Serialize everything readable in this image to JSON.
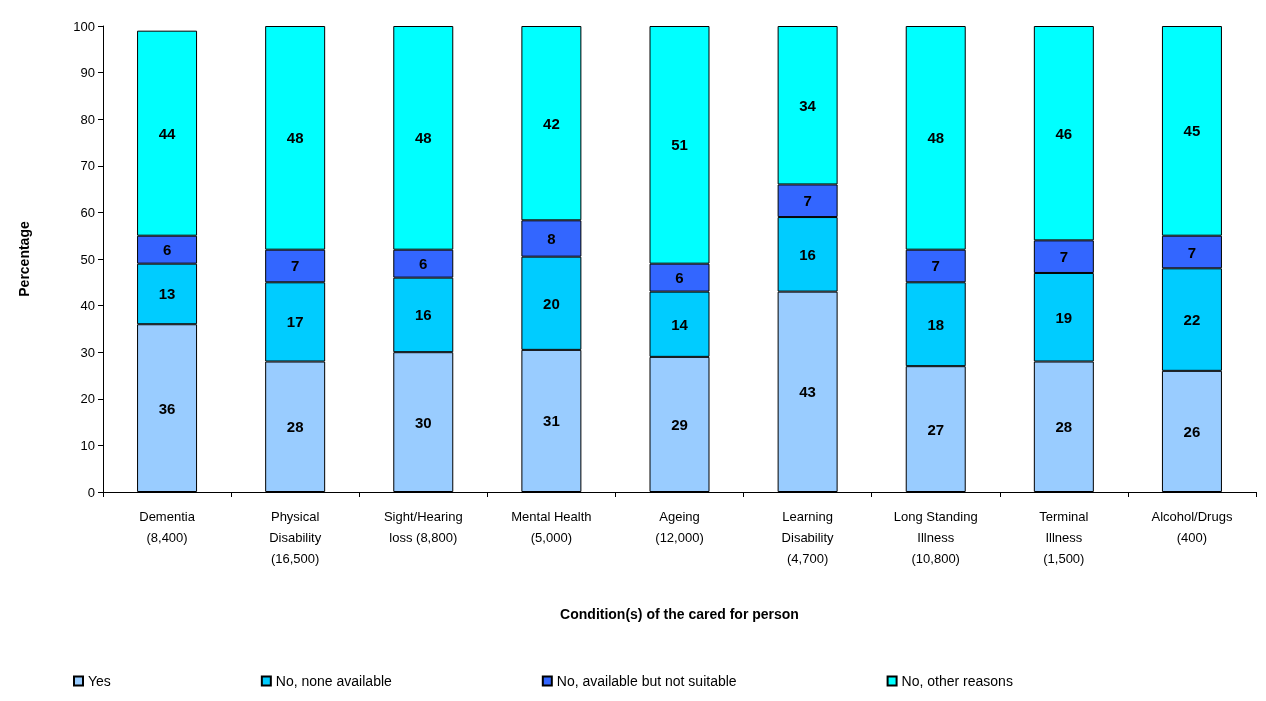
{
  "chart_data": {
    "type": "bar",
    "stacked": true,
    "xlabel": "Condition(s) of the cared for person",
    "ylabel": "Percentage",
    "categories": [
      "Dementia (8,400)",
      "Physical Disability (16,500)",
      "Sight/Hearing loss (8,800)",
      "Mental Health (5,000)",
      "Ageing (12,000)",
      "Learning Disability (4,700)",
      "Long Standing Illness (10,800)",
      "Terminal Illness (1,500)",
      "Alcohol/Drugs (400)"
    ],
    "series": [
      {
        "name": "Yes",
        "color": "#99ccff",
        "values": [
          36,
          28,
          30,
          30.5,
          29,
          43,
          27,
          28,
          26
        ],
        "value_labels": [
          "36",
          "28",
          "30",
          "31",
          "29",
          "43",
          "27",
          "28",
          "26"
        ]
      },
      {
        "name": "No, none available",
        "color": "#00ccff",
        "values": [
          13,
          17,
          16,
          20,
          14,
          16,
          18,
          19,
          22
        ],
        "value_labels": [
          "13",
          "17",
          "16",
          "20",
          "14",
          "16",
          "18",
          "19",
          "22"
        ]
      },
      {
        "name": "No, available but not suitable",
        "color": "#3366ff",
        "values": [
          6,
          7,
          6,
          7.8,
          6,
          7,
          7,
          7,
          7
        ],
        "value_labels": [
          "6",
          "7",
          "6",
          "8",
          "6",
          "7",
          "7",
          "7",
          "7"
        ]
      },
      {
        "name": "No, other reasons",
        "color": "#00ffff",
        "values": [
          44,
          48,
          48,
          41.7,
          51,
          34,
          48,
          46,
          45
        ],
        "value_labels": [
          "44",
          "48",
          "48",
          "42",
          "51",
          "34",
          "48",
          "46",
          "45"
        ]
      }
    ],
    "ylim": [
      0,
      100
    ],
    "yticks": [
      0,
      10,
      20,
      30,
      40,
      50,
      60,
      70,
      80,
      90,
      100
    ],
    "grid": false,
    "legend": "bottom"
  }
}
